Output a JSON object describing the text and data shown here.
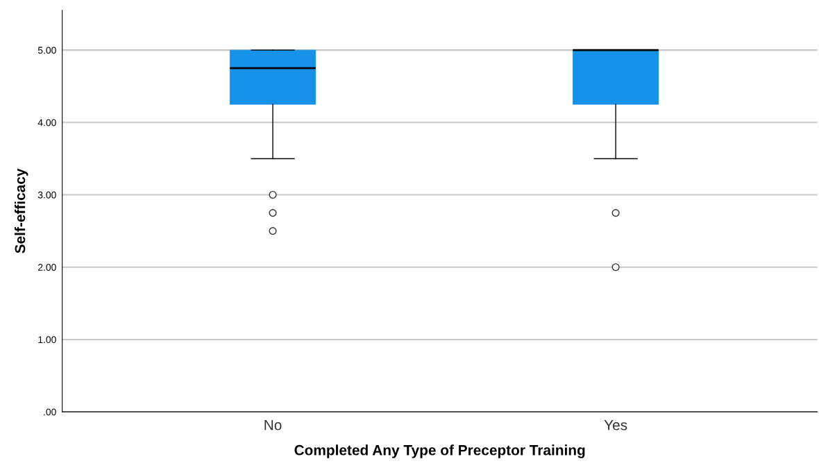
{
  "chart_data": {
    "type": "box",
    "xlabel": "Completed Any Type of Preceptor Training",
    "ylabel": "Self-efficacy",
    "categories": [
      "No",
      "Yes"
    ],
    "boxes": [
      {
        "low": 3.5,
        "q1": 4.25,
        "median": 4.75,
        "q3": 5.0,
        "high": 5.0,
        "outliers": [
          3.0,
          2.75,
          2.5
        ]
      },
      {
        "low": 3.5,
        "q1": 4.25,
        "median": 5.0,
        "q3": 5.0,
        "high": 5.0,
        "outliers": [
          2.75,
          2.0
        ]
      }
    ],
    "color": "#1591e8",
    "ylim": [
      0,
      5.55
    ],
    "yticks": [
      {
        "value": 0,
        "label": ".00"
      },
      {
        "value": 1,
        "label": "1.00"
      },
      {
        "value": 2,
        "label": "2.00"
      },
      {
        "value": 3,
        "label": "3.00"
      },
      {
        "value": 4,
        "label": "4.00"
      },
      {
        "value": 5,
        "label": "5.00"
      }
    ],
    "grid": "y",
    "legend": false
  }
}
